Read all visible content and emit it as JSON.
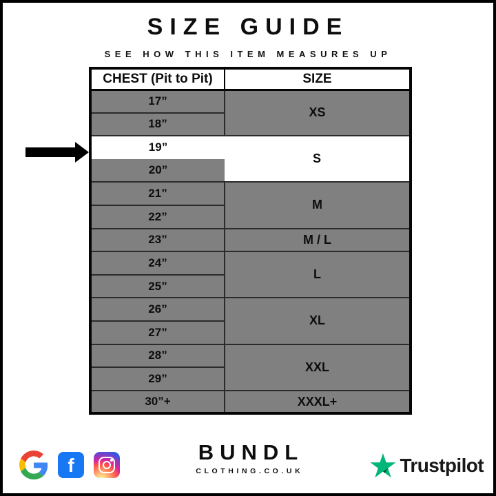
{
  "header": {
    "title": "SIZE GUIDE",
    "subtitle": "SEE HOW THIS ITEM MEASURES UP"
  },
  "chart_data": {
    "type": "table",
    "title": "SIZE GUIDE",
    "subtitle": "SEE HOW THIS ITEM MEASURES UP",
    "columns": [
      "CHEST (Pit to Pit)",
      "SIZE"
    ],
    "rows": [
      [
        "17”",
        "XS"
      ],
      [
        "18”",
        "XS"
      ],
      [
        "19”",
        "S"
      ],
      [
        "20”",
        "S"
      ],
      [
        "21”",
        "M"
      ],
      [
        "22”",
        "M"
      ],
      [
        "23”",
        "M / L"
      ],
      [
        "24”",
        "L"
      ],
      [
        "25”",
        "L"
      ],
      [
        "26”",
        "XL"
      ],
      [
        "27”",
        "XL"
      ],
      [
        "28”",
        "XXL"
      ],
      [
        "29”",
        "XXL"
      ],
      [
        "30”+",
        "XXXL+"
      ]
    ],
    "highlighted_row": [
      "19”",
      "S"
    ],
    "layout_hints": {
      "row_fill": "#808080",
      "highlight_fill": "#ffffff",
      "border_color": "#2b2b2b",
      "outer_border_color": "#050505",
      "indicator": "black-arrow-pointing-right-at-19-inch-row"
    }
  },
  "footer": {
    "brand": "BUNDL",
    "brand_sub": "CLOTHING.CO.UK",
    "facebook_letter": "f",
    "trustpilot_label": "Trustpilot",
    "icons": [
      "google-icon",
      "facebook-icon",
      "instagram-icon",
      "trustpilot-star-icon"
    ]
  },
  "colors": {
    "google_blue": "#4285F4",
    "google_red": "#EA4335",
    "google_yellow": "#FBBC05",
    "google_green": "#34A853",
    "facebook_blue": "#1877F2",
    "trustpilot_green": "#00B67A",
    "trustpilot_dark_green": "#005128",
    "table_gray": "#808080"
  }
}
